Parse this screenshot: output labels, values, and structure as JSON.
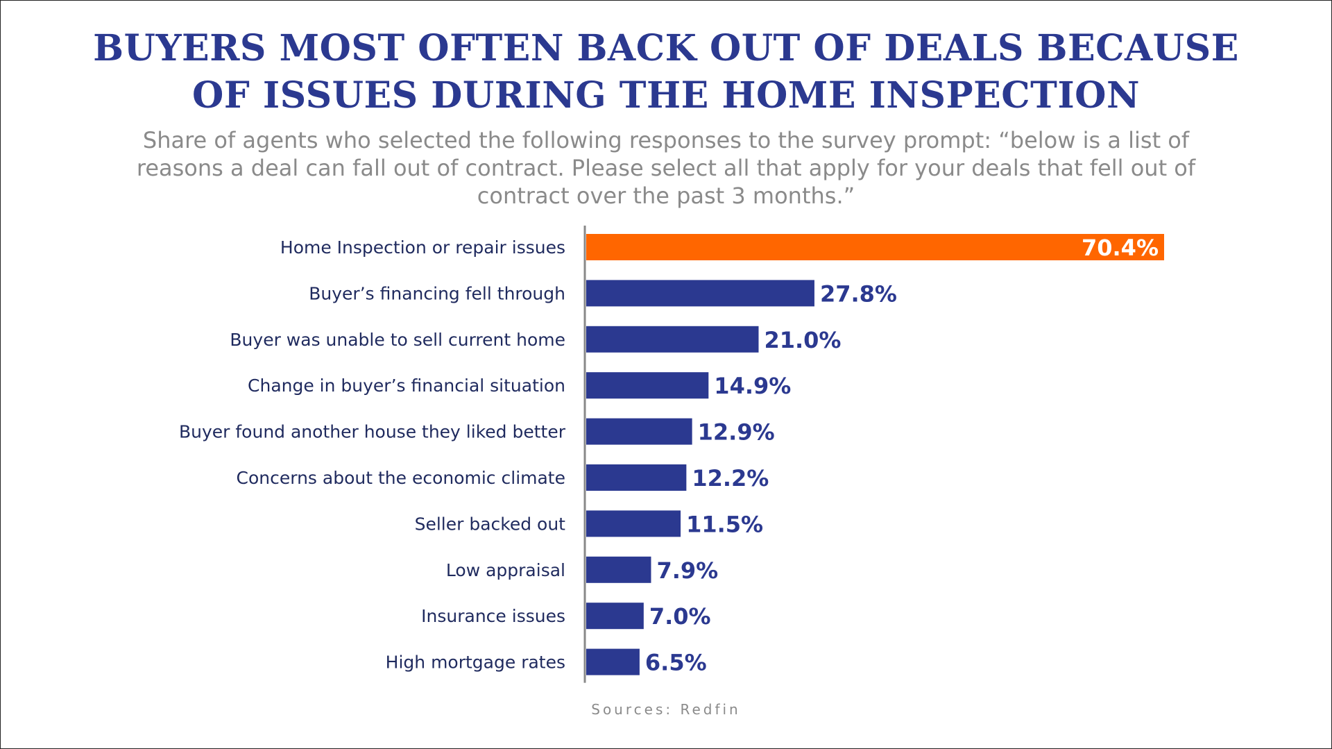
{
  "title": {
    "line1": "BUYERS MOST  OFTEN BACK OUT OF DEALS BECAUSE",
    "line2": "OF ISSUES DURING THE HOME INSPECTION"
  },
  "subtitle": {
    "line1": "Share of agents who selected the following responses to the survey prompt: “below is a list of",
    "line2": "reasons a deal can fall out of contract. Please select all that apply for your deals that fell out of",
    "line3": "contract over the past 3 months.”"
  },
  "source": "Sources: Redfin",
  "colors": {
    "title": "#2b3990",
    "bar": "#2b3990",
    "highlight": "#ff6600",
    "axis": "#888888"
  },
  "chart_data": {
    "type": "bar",
    "orientation": "horizontal",
    "categories": [
      "Home Inspection or repair issues",
      "Buyer’s financing fell through",
      "Buyer was unable to sell current home",
      "Change in buyer’s financial situation",
      "Buyer found another house they liked better",
      "Concerns about the economic climate",
      "Seller backed out",
      "Low appraisal",
      "Insurance issues",
      "High mortgage rates"
    ],
    "values": [
      70.4,
      27.8,
      21.0,
      14.9,
      12.9,
      12.2,
      11.5,
      7.9,
      7.0,
      6.5
    ],
    "data_labels": [
      "70.4%",
      "27.8%",
      "21.0%",
      "14.9%",
      "12.9%",
      "12.2%",
      "11.5%",
      "7.9%",
      "7.0%",
      "6.5%"
    ],
    "highlight_index": 0,
    "xlim": [
      0,
      100
    ],
    "grid": false,
    "legend": "none"
  }
}
